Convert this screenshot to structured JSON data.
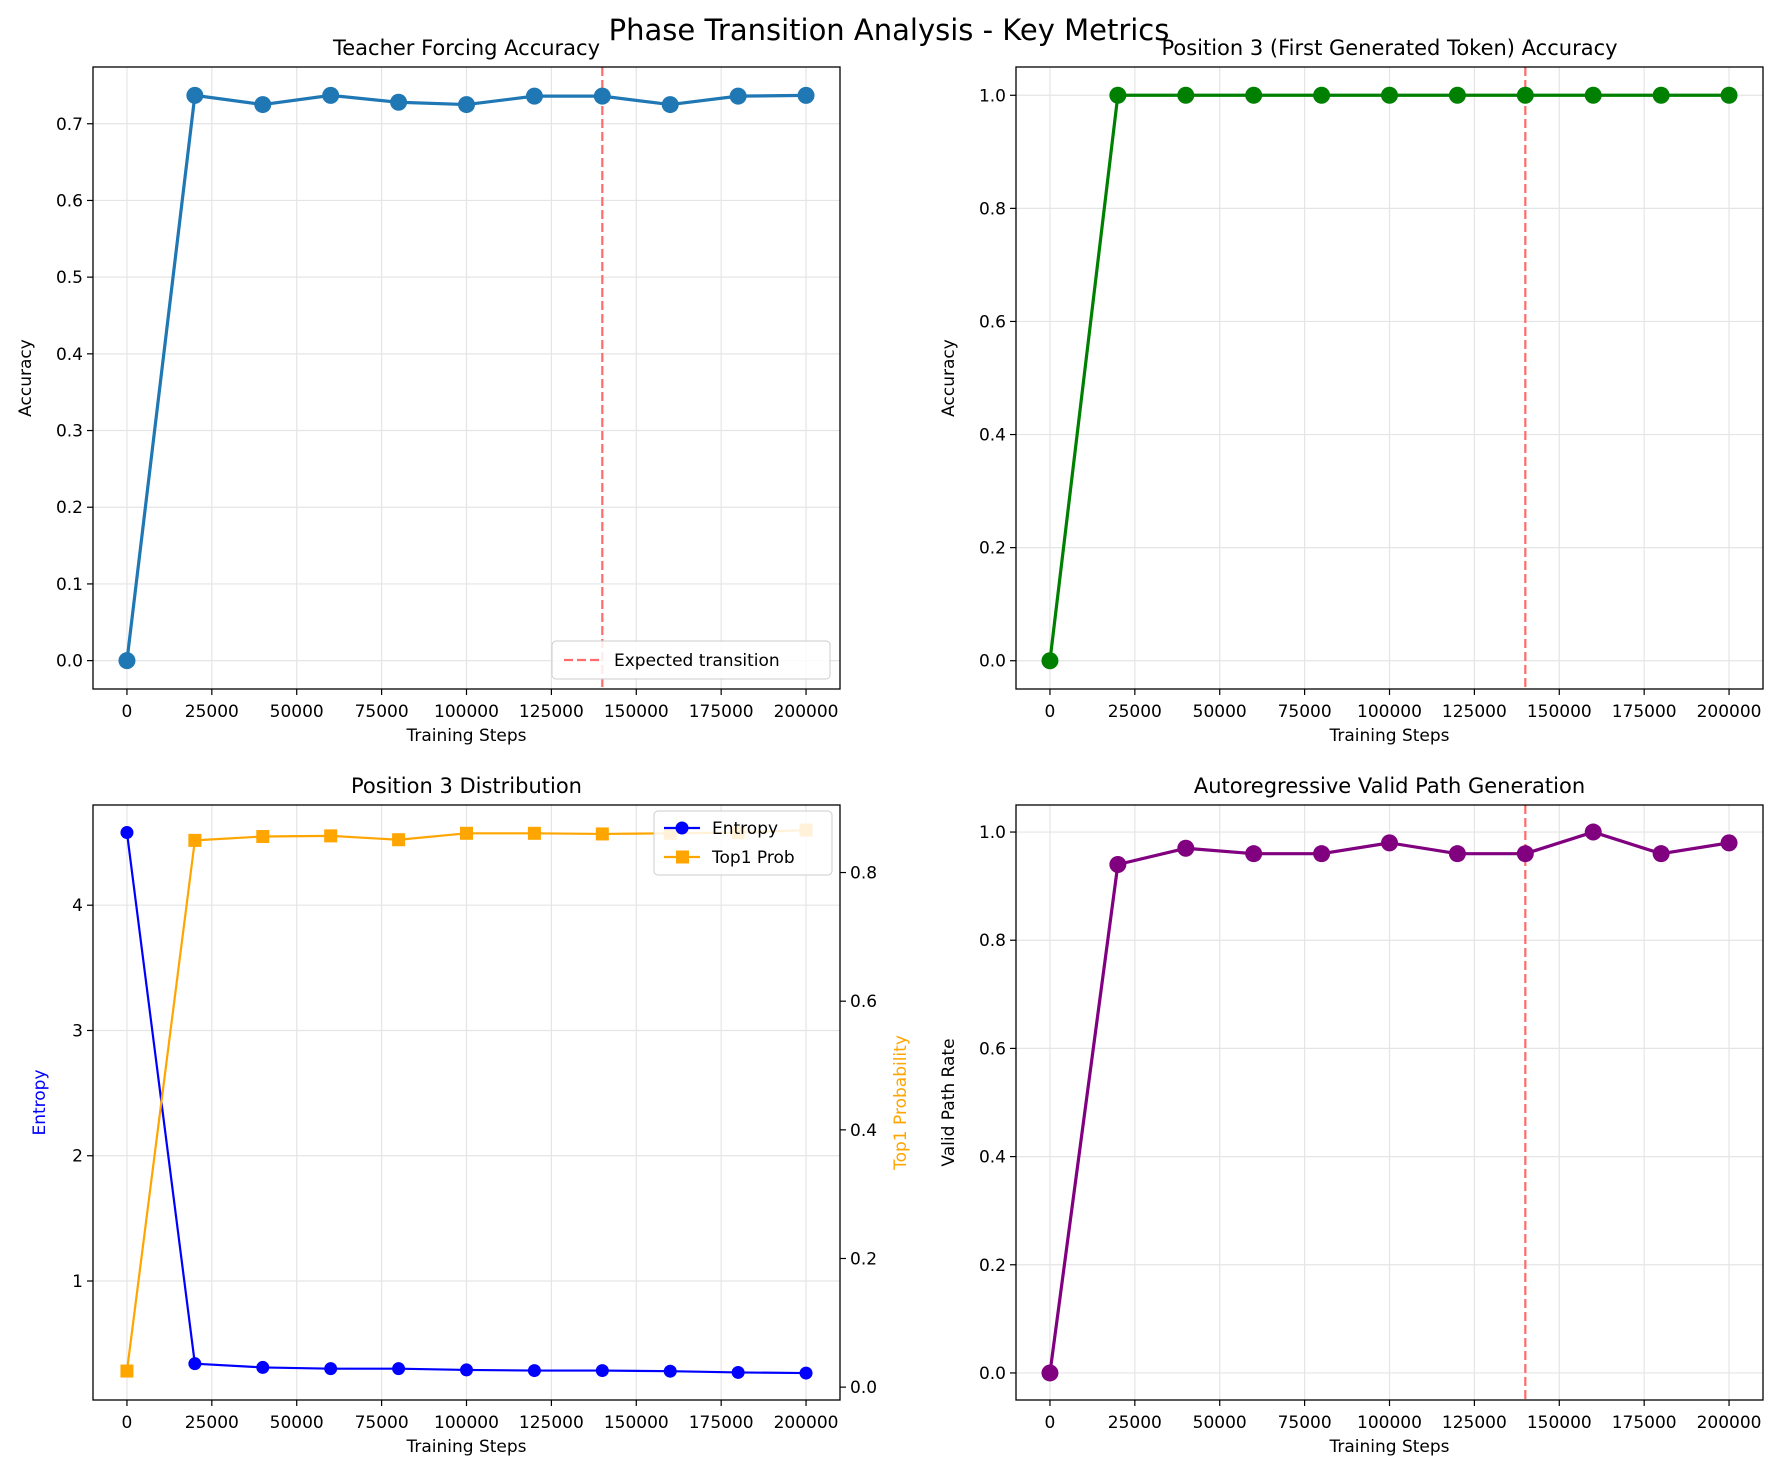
{
  "suptitle": "Phase Transition Analysis - Key Metrics",
  "colors": {
    "tf": "#1f77b4",
    "pos3": "#008000",
    "entropy": "#0000ff",
    "top1": "#ffa500",
    "valid": "#800080",
    "transition": "#ff6b6b",
    "grid": "#e5e5e5"
  },
  "chart_data": [
    {
      "type": "line",
      "title": "Teacher Forcing Accuracy",
      "xlabel": "Training Steps",
      "ylabel": "Accuracy",
      "x": [
        0,
        20000,
        40000,
        60000,
        80000,
        100000,
        120000,
        140000,
        160000,
        180000,
        200000
      ],
      "series": [
        {
          "values": [
            0.0,
            0.737,
            0.725,
            0.737,
            0.728,
            0.725,
            0.736,
            0.736,
            0.725,
            0.736,
            0.737
          ],
          "color": "#1f77b4",
          "marker": "circle"
        }
      ],
      "xlim": [
        -10000,
        210000
      ],
      "ylim": [
        -0.037,
        0.774
      ],
      "xticks": [
        0,
        25000,
        50000,
        75000,
        100000,
        125000,
        150000,
        175000,
        200000
      ],
      "yticks": [
        0.0,
        0.1,
        0.2,
        0.3,
        0.4,
        0.5,
        0.6,
        0.7
      ],
      "vline": {
        "x": 140000,
        "label": "Expected transition"
      },
      "legend": "lower right",
      "grid": true
    },
    {
      "type": "line",
      "title": "Position 3 (First Generated Token) Accuracy",
      "xlabel": "Training Steps",
      "ylabel": "Accuracy",
      "x": [
        0,
        20000,
        40000,
        60000,
        80000,
        100000,
        120000,
        140000,
        160000,
        180000,
        200000
      ],
      "series": [
        {
          "values": [
            0.0,
            1.0,
            1.0,
            1.0,
            1.0,
            1.0,
            1.0,
            1.0,
            1.0,
            1.0,
            1.0
          ],
          "color": "#008000",
          "marker": "circle"
        }
      ],
      "xlim": [
        -10000,
        210000
      ],
      "ylim": [
        -0.05,
        1.05
      ],
      "xticks": [
        0,
        25000,
        50000,
        75000,
        100000,
        125000,
        150000,
        175000,
        200000
      ],
      "yticks": [
        0.0,
        0.2,
        0.4,
        0.6,
        0.8,
        1.0
      ],
      "vline": {
        "x": 140000
      },
      "grid": true
    },
    {
      "type": "line",
      "title": "Position 3 Distribution",
      "xlabel": "Training Steps",
      "ylabel": "Entropy",
      "ylabel_right": "Top1 Probability",
      "x": [
        0,
        20000,
        40000,
        60000,
        80000,
        100000,
        120000,
        140000,
        160000,
        180000,
        200000
      ],
      "series": [
        {
          "name": "Entropy",
          "axis": "left",
          "values": [
            4.58,
            0.34,
            0.31,
            0.3,
            0.3,
            0.29,
            0.285,
            0.285,
            0.28,
            0.27,
            0.265
          ],
          "color": "#0000ff",
          "marker": "circle"
        },
        {
          "name": "Top1 Prob",
          "axis": "right",
          "values": [
            0.025,
            0.85,
            0.856,
            0.857,
            0.851,
            0.861,
            0.861,
            0.86,
            0.861,
            0.862,
            0.866
          ],
          "color": "#ffa500",
          "marker": "square"
        }
      ],
      "xlim": [
        -10000,
        210000
      ],
      "ylim": [
        0.05,
        4.8
      ],
      "ylim_right": [
        -0.02,
        0.905
      ],
      "xticks": [
        0,
        25000,
        50000,
        75000,
        100000,
        125000,
        150000,
        175000,
        200000
      ],
      "yticks": [
        1,
        2,
        3,
        4
      ],
      "yticks_right": [
        0.0,
        0.2,
        0.4,
        0.6,
        0.8
      ],
      "legend": "upper right",
      "grid": true
    },
    {
      "type": "line",
      "title": "Autoregressive Valid Path Generation",
      "xlabel": "Training Steps",
      "ylabel": "Valid Path Rate",
      "x": [
        0,
        20000,
        40000,
        60000,
        80000,
        100000,
        120000,
        140000,
        160000,
        180000,
        200000
      ],
      "series": [
        {
          "values": [
            0.0,
            0.94,
            0.97,
            0.96,
            0.96,
            0.98,
            0.96,
            0.96,
            1.0,
            0.96,
            0.98
          ],
          "color": "#800080",
          "marker": "circle"
        }
      ],
      "xlim": [
        -10000,
        210000
      ],
      "ylim": [
        -0.05,
        1.05
      ],
      "xticks": [
        0,
        25000,
        50000,
        75000,
        100000,
        125000,
        150000,
        175000,
        200000
      ],
      "yticks": [
        0.0,
        0.2,
        0.4,
        0.6,
        0.8,
        1.0
      ],
      "vline": {
        "x": 140000
      },
      "grid": true
    }
  ]
}
